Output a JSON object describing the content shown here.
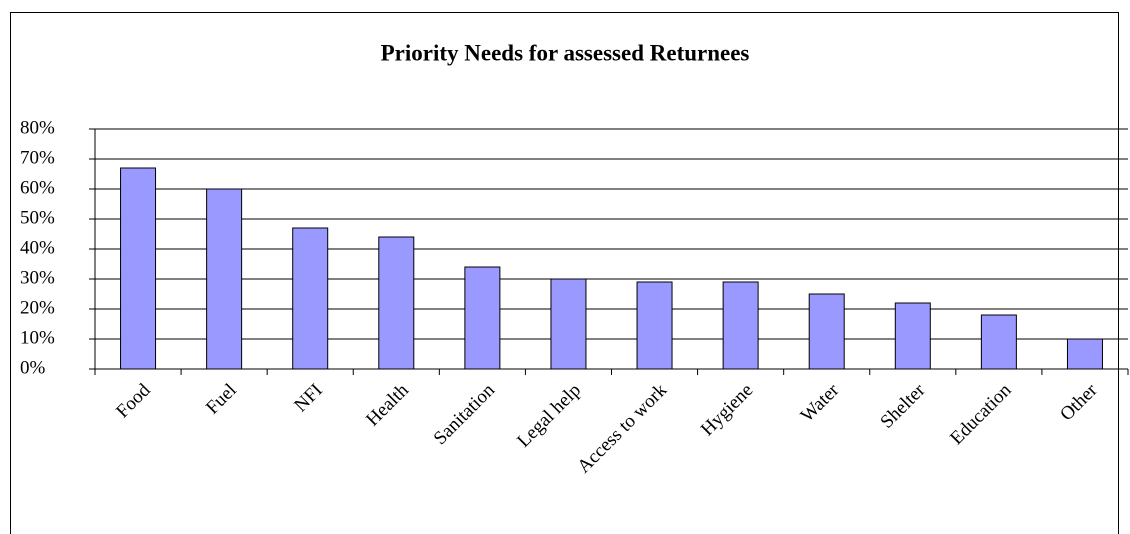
{
  "chart_data": {
    "type": "bar",
    "title": "Priority Needs for assessed Returnees",
    "categories": [
      "Food",
      "Fuel",
      "NFI",
      "Health",
      "Sanitation",
      "Legal help",
      "Access to work",
      "Hygiene",
      "Water",
      "Shelter",
      "Education",
      "Other"
    ],
    "values": [
      67,
      60,
      47,
      44,
      34,
      30,
      29,
      29,
      25,
      22,
      18,
      10
    ],
    "color": "#9999ff",
    "ylim": [
      0,
      80
    ],
    "yticks": [
      {
        "value": 0,
        "label": "0%"
      },
      {
        "value": 10,
        "label": "10%"
      },
      {
        "value": 20,
        "label": "20%"
      },
      {
        "value": 30,
        "label": "30%"
      },
      {
        "value": 40,
        "label": "40%"
      },
      {
        "value": 50,
        "label": "50%"
      },
      {
        "value": 60,
        "label": "60%"
      },
      {
        "value": 70,
        "label": "70%"
      },
      {
        "value": 80,
        "label": "80%"
      }
    ],
    "grid": true
  }
}
